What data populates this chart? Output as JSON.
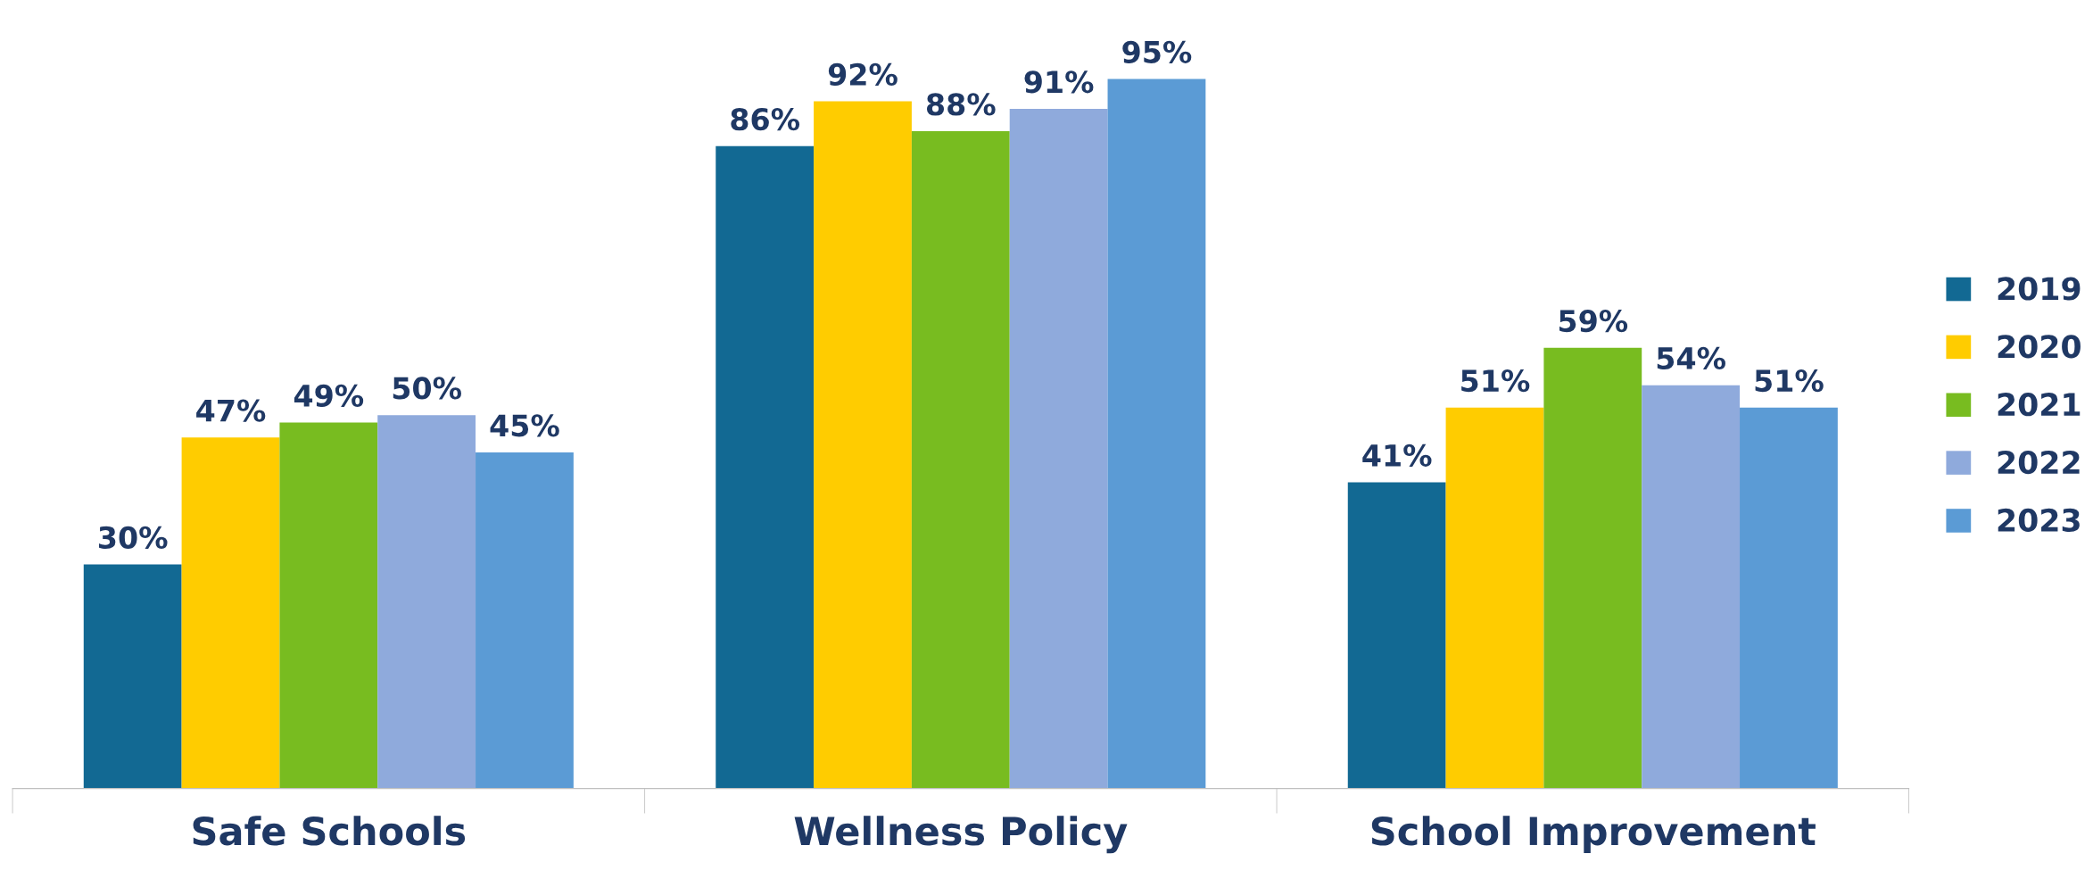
{
  "chart_data": {
    "type": "bar",
    "categories": [
      "Safe Schools",
      "Wellness Policy",
      "School Improvement"
    ],
    "series": [
      {
        "name": "2019",
        "color": "#126993",
        "values": [
          30,
          86,
          41
        ],
        "value_labels": [
          "30%",
          "86%",
          "41%"
        ]
      },
      {
        "name": "2020",
        "color": "#ffcc00",
        "values": [
          47,
          92,
          51
        ],
        "value_labels": [
          "47%",
          "92%",
          "51%"
        ]
      },
      {
        "name": "2021",
        "color": "#78bc20",
        "values": [
          49,
          88,
          59
        ],
        "value_labels": [
          "49%",
          "88%",
          "59%"
        ]
      },
      {
        "name": "2022",
        "color": "#8faadc",
        "values": [
          50,
          91,
          54
        ],
        "value_labels": [
          "50%",
          "91%",
          "54%"
        ]
      },
      {
        "name": "2023",
        "color": "#5b9bd5",
        "values": [
          45,
          95,
          51
        ],
        "value_labels": [
          "45%",
          "95%",
          "51%"
        ]
      }
    ],
    "legend": "right",
    "grid": false
  }
}
